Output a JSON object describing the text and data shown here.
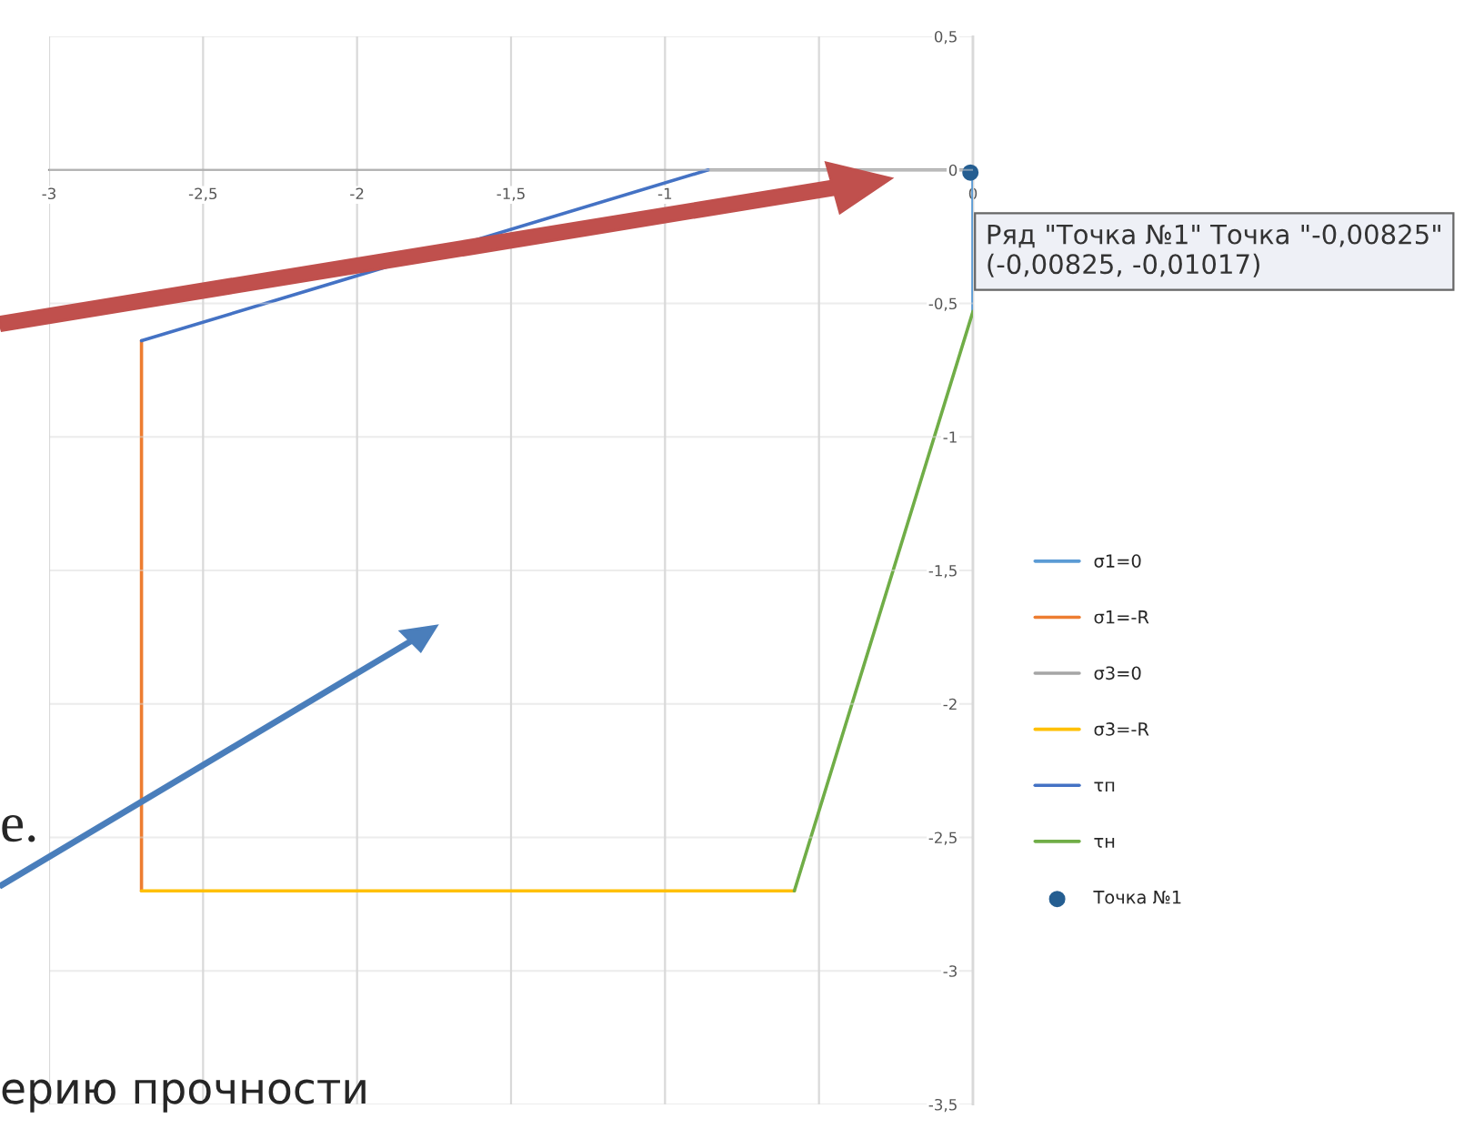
{
  "chart_data": {
    "type": "line",
    "series": [
      {
        "name": "σ1=0",
        "color": "#5b9bd5",
        "x": [
          0,
          0
        ],
        "values": [
          0,
          -0.53
        ]
      },
      {
        "name": "σ1=-R",
        "color": "#ed7d31",
        "x": [
          -2.7,
          -2.7
        ],
        "values": [
          -0.64,
          -2.7
        ]
      },
      {
        "name": "σ3=0",
        "color": "#a5a5a5",
        "x": [
          -0.86,
          0
        ],
        "values": [
          0,
          0
        ]
      },
      {
        "name": "σ3=-R",
        "color": "#ffc000",
        "x": [
          -2.7,
          -0.58
        ],
        "values": [
          -2.7,
          -2.7
        ]
      },
      {
        "name": "τп",
        "color": "#4472c4",
        "x": [
          -2.7,
          -0.86
        ],
        "values": [
          -0.64,
          0
        ]
      },
      {
        "name": "τн",
        "color": "#70ad47",
        "x": [
          -0.58,
          0
        ],
        "values": [
          -2.7,
          -0.53
        ]
      },
      {
        "name": "Точка №1",
        "type": "scatter",
        "marker": "circle",
        "color": "#255e91",
        "x": [
          -0.00825
        ],
        "values": [
          -0.01017
        ]
      }
    ],
    "xlim": [
      -3,
      0
    ],
    "ylim": [
      -3.5,
      0.5
    ],
    "xticks": [
      -3,
      {
        "value": -2.5,
        "label": "-2,5"
      },
      -2,
      {
        "value": -1.5,
        "label": "-1,5"
      },
      -1,
      {
        "value": -0.5,
        "label": null
      },
      0
    ],
    "yticks": [
      {
        "value": 0.5,
        "label": "0,5"
      },
      0,
      {
        "value": -0.5,
        "label": "-0,5"
      },
      -1,
      {
        "value": -1.5,
        "label": "-1,5"
      },
      -2,
      {
        "value": -2.5,
        "label": "-2,5"
      },
      -3,
      {
        "value": -3.5,
        "label": "-3,5"
      }
    ],
    "grid": true,
    "legend": "right",
    "annotations": [
      {
        "text": "Ряд \"Точка №1\" Точка \"-0,00825\"\n(-0,00825, -0,01017)",
        "x": -0.00825,
        "y": -0.01017
      },
      "е.",
      "ерию прочности"
    ]
  }
}
